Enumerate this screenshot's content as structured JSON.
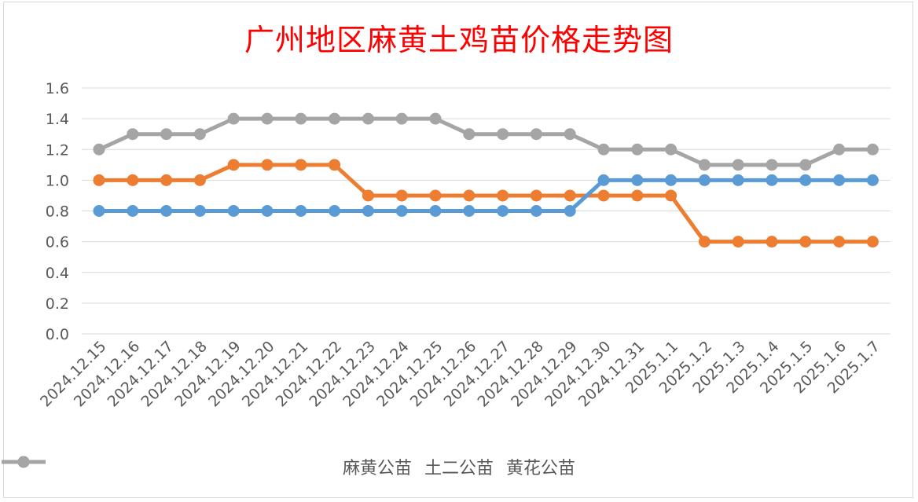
{
  "chart_data": {
    "type": "line",
    "title": "广州地区麻黄土鸡苗价格走势图",
    "categories": [
      "2024.12.15",
      "2024.12.16",
      "2024.12.17",
      "2024.12.18",
      "2024.12.19",
      "2024.12.20",
      "2024.12.21",
      "2024.12.22",
      "2024.12.23",
      "2024.12.24",
      "2024.12.25",
      "2024.12.26",
      "2024.12.27",
      "2024.12.28",
      "2024.12.29",
      "2024.12.30",
      "2024.12.31",
      "2025.1.1",
      "2025.1.2",
      "2025.1.3",
      "2025.1.4",
      "2025.1.5",
      "2025.1.6",
      "2025.1.7"
    ],
    "y_ticks": [
      "0.0",
      "0.2",
      "0.4",
      "0.6",
      "0.8",
      "1.0",
      "1.2",
      "1.4",
      "1.6"
    ],
    "ylim": [
      0,
      1.6
    ],
    "grid": true,
    "legend_position": "bottom",
    "series": [
      {
        "name": "麻黄公苗",
        "color": "#5b9bd5",
        "values": [
          0.8,
          0.8,
          0.8,
          0.8,
          0.8,
          0.8,
          0.8,
          0.8,
          0.8,
          0.8,
          0.8,
          0.8,
          0.8,
          0.8,
          0.8,
          1.0,
          1.0,
          1.0,
          1.0,
          1.0,
          1.0,
          1.0,
          1.0,
          1.0
        ]
      },
      {
        "name": "土二公苗",
        "color": "#ed7d31",
        "values": [
          1.0,
          1.0,
          1.0,
          1.0,
          1.1,
          1.1,
          1.1,
          1.1,
          0.9,
          0.9,
          0.9,
          0.9,
          0.9,
          0.9,
          0.9,
          0.9,
          0.9,
          0.9,
          0.6,
          0.6,
          0.6,
          0.6,
          0.6,
          0.6
        ]
      },
      {
        "name": "黄花公苗",
        "color": "#a5a5a5",
        "values": [
          1.2,
          1.3,
          1.3,
          1.3,
          1.4,
          1.4,
          1.4,
          1.4,
          1.4,
          1.4,
          1.4,
          1.3,
          1.3,
          1.3,
          1.3,
          1.2,
          1.2,
          1.2,
          1.1,
          1.1,
          1.1,
          1.1,
          1.2,
          1.2
        ]
      }
    ]
  }
}
